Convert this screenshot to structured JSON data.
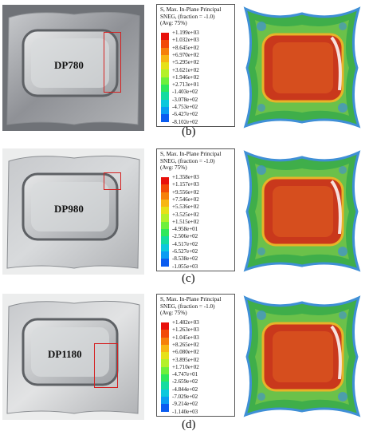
{
  "figure": {
    "panels": [
      {
        "caption": "(b)",
        "material": "DP780",
        "legend_title": [
          "S, Max. In-Plane Principal",
          "SNEG, (fraction = -1.0)",
          "(Avg: 75%)"
        ],
        "legend_values": [
          "+1.199e+03",
          "+1.032e+03",
          "+8.645e+02",
          "+6.970e+02",
          "+5.295e+02",
          "+3.621e+02",
          "+1.946e+02",
          "+2.713e+01",
          "-1.403e+02",
          "-3.078e+02",
          "-4.753e+02",
          "-6.427e+02",
          "-8.102e+02"
        ]
      },
      {
        "caption": "(c)",
        "material": "DP980",
        "legend_title": [
          "S, Max. In-Plane Principal",
          "SNEG, (fraction = -1.0)",
          "(Avg: 75%)"
        ],
        "legend_values": [
          "+1.358e+03",
          "+1.157e+03",
          "+9.556e+02",
          "+7.546e+02",
          "+5.536e+02",
          "+3.525e+02",
          "+1.515e+02",
          "-4.958e+01",
          "-2.506e+02",
          "-4.517e+02",
          "-6.527e+02",
          "-8.538e+02",
          "-1.055e+03"
        ]
      },
      {
        "caption": "(d)",
        "material": "DP1180",
        "legend_title": [
          "S, Max. In-Plane Principal",
          "SNEG, (fraction = -1.0)",
          "(Avg: 75%)"
        ],
        "legend_values": [
          "+1.482e+03",
          "+1.263e+03",
          "+1.045e+03",
          "+8.265e+02",
          "+6.080e+02",
          "+3.895e+02",
          "+1.710e+02",
          "-4.747e+01",
          "-2.659e+02",
          "-4.844e+02",
          "-7.029e+02",
          "-9.214e+02",
          "-1.140e+03"
        ]
      }
    ],
    "colors": {
      "scale": [
        "#e8110c",
        "#f24a08",
        "#f6800a",
        "#f7b614",
        "#e6e119",
        "#b4f02a",
        "#6ef03c",
        "#2fe85c",
        "#14dca0",
        "#0cc8dc",
        "#0a9cf2",
        "#0a5cf0",
        "#1a1ad8"
      ],
      "highlight_box": "#d42020",
      "sim_red": "#c9381c",
      "sim_green": "#3fae4a",
      "sim_blue": "#3f8fd6"
    }
  }
}
